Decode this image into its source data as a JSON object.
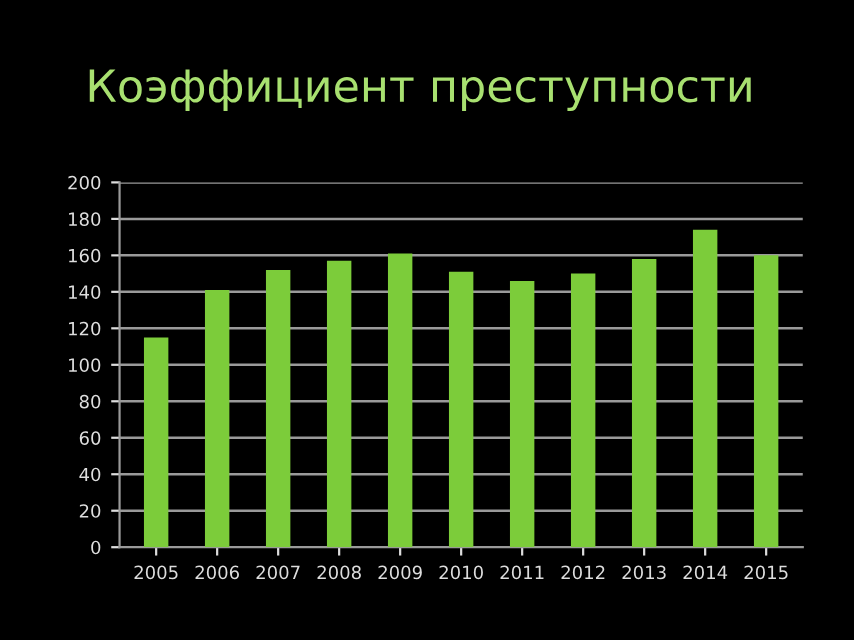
{
  "chart_data": {
    "type": "bar",
    "title": "Коэффициент преступности",
    "categories": [
      "2005",
      "2006",
      "2007",
      "2008",
      "2009",
      "2010",
      "2011",
      "2012",
      "2013",
      "2014",
      "2015"
    ],
    "values": [
      115,
      141,
      152,
      157,
      161,
      151,
      146,
      150,
      158,
      174,
      160
    ],
    "color": "#7ccc3a",
    "ylim": [
      0,
      200
    ],
    "yticks": [
      0,
      20,
      40,
      60,
      80,
      100,
      120,
      140,
      160,
      180,
      200
    ],
    "grid": "y"
  }
}
